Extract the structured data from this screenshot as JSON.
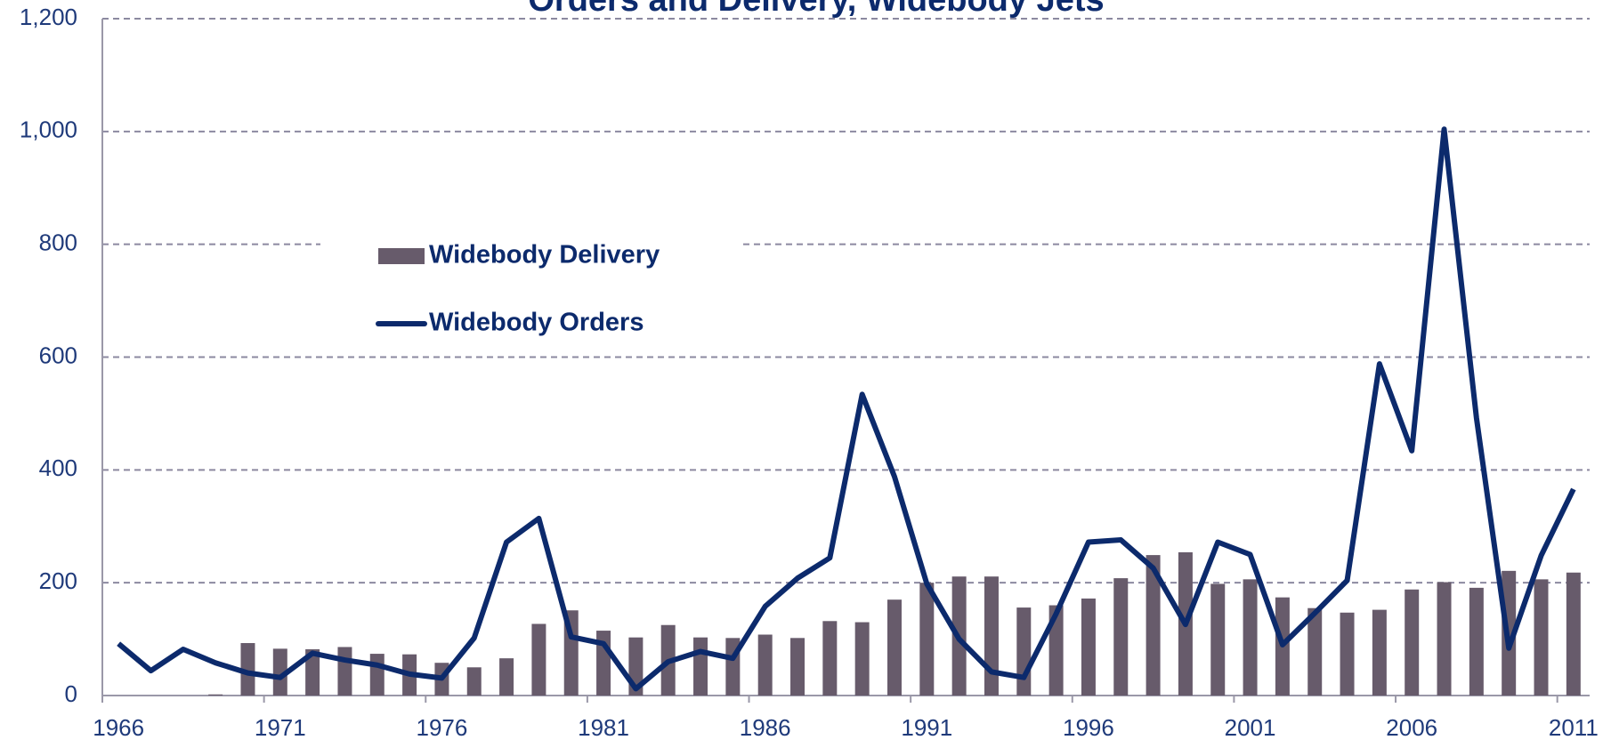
{
  "chart_data": {
    "type": "bar_line",
    "title": "Orders and Delivery, Widebody Jets",
    "x": [
      1966,
      1967,
      1968,
      1969,
      1970,
      1971,
      1972,
      1973,
      1974,
      1975,
      1976,
      1977,
      1978,
      1979,
      1980,
      1981,
      1982,
      1983,
      1984,
      1985,
      1986,
      1987,
      1988,
      1989,
      1990,
      1991,
      1992,
      1993,
      1994,
      1995,
      1996,
      1997,
      1998,
      1999,
      2000,
      2001,
      2002,
      2003,
      2004,
      2005,
      2006,
      2007,
      2008,
      2009,
      2010,
      2011
    ],
    "series": [
      {
        "name": "Widebody Delivery",
        "type": "bar",
        "color": "#675b6b",
        "values": [
          0,
          0,
          0,
          2,
          93,
          83,
          82,
          86,
          74,
          73,
          58,
          50,
          66,
          127,
          151,
          115,
          103,
          125,
          103,
          102,
          108,
          102,
          132,
          130,
          170,
          200,
          211,
          211,
          156,
          160,
          172,
          208,
          249,
          254,
          198,
          206,
          174,
          155,
          147,
          152,
          188,
          201,
          191,
          221,
          206,
          218
        ]
      },
      {
        "name": "Widebody Orders",
        "type": "line",
        "color": "#0c2a6c",
        "values": [
          92,
          44,
          82,
          58,
          40,
          32,
          75,
          63,
          54,
          38,
          31,
          102,
          272,
          314,
          104,
          92,
          12,
          60,
          78,
          66,
          158,
          208,
          244,
          534,
          388,
          198,
          100,
          42,
          32,
          145,
          272,
          276,
          226,
          126,
          272,
          250,
          90,
          146,
          204,
          588,
          434,
          1004,
          492,
          84,
          248,
          366
        ]
      }
    ],
    "xlim": [
      1965.5,
      2011.5
    ],
    "xticks": [
      1966,
      1971,
      1976,
      1981,
      1986,
      1991,
      1996,
      2001,
      2006,
      2011
    ],
    "ylim": [
      0,
      1200
    ],
    "yticks": [
      0,
      200,
      400,
      600,
      800,
      {
        "value": 1000,
        "label": "1,000"
      },
      {
        "value": 1200,
        "label": "1,200"
      }
    ],
    "grid": true,
    "legend": "upper left"
  }
}
